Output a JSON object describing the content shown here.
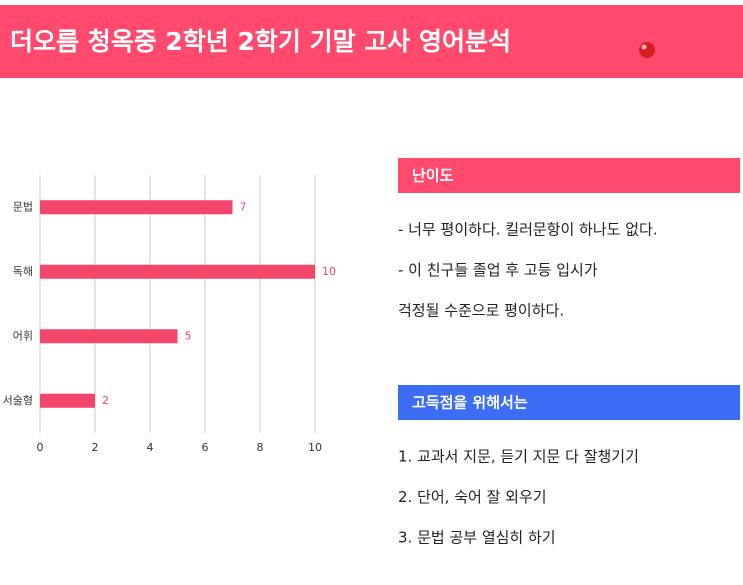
{
  "header": {
    "title": "더오름 청옥중 2학년 2학기 기말 고사 영어분석"
  },
  "chart_data": {
    "type": "bar",
    "orientation": "horizontal",
    "categories": [
      "문법",
      "독해",
      "어휘",
      "서술형"
    ],
    "values": [
      7,
      10,
      5,
      2
    ],
    "color": "#f4456a",
    "xlim": [
      0,
      10
    ],
    "xticks": [
      0,
      2,
      4,
      6,
      8,
      10
    ],
    "grid": true
  },
  "sections": [
    {
      "title": "난이도",
      "color": "#ff4a6e",
      "lines": [
        "- 너무 평이하다. 킬러문항이 하나도 없다.",
        "- 이 친구들 졸업 후 고등 입시가",
        "걱정될 수준으로 평이하다."
      ]
    },
    {
      "title": "고득점을 위해서는",
      "color": "#3d6cf5",
      "lines": [
        "1. 교과서 지문, 듣기 지문 다 잘챙기기",
        "2. 단어, 숙어 잘 외우기",
        "3. 문법 공부 열심히 하기"
      ]
    }
  ]
}
